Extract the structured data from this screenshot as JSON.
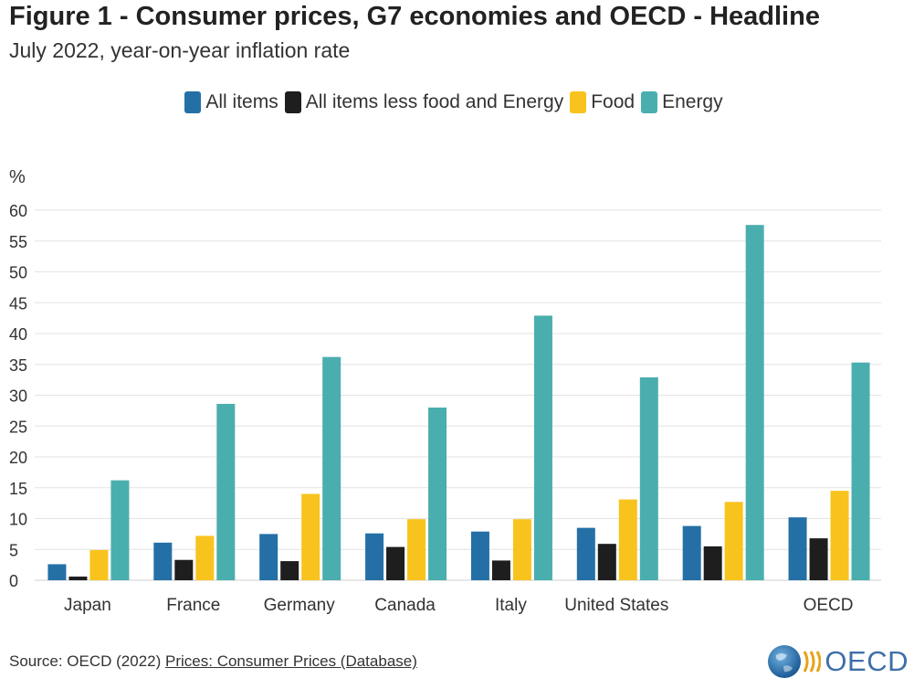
{
  "header": {
    "title": "Figure 1 - Consumer prices, G7 economies and OECD - Headline",
    "subtitle": "July 2022, year-on-year inflation rate"
  },
  "footer": {
    "source_prefix": "Source: OECD (2022) ",
    "source_link": "Prices: Consumer Prices (Database)",
    "logo_text": "OECD"
  },
  "chart_data": {
    "type": "bar",
    "title": "Figure 1 - Consumer prices, G7 economies and OECD - Headline",
    "subtitle": "July 2022, year-on-year inflation rate",
    "ylabel": "%",
    "xlabel": "",
    "ylim": [
      0,
      60
    ],
    "yticks": [
      0,
      5,
      10,
      15,
      20,
      25,
      30,
      35,
      40,
      45,
      50,
      55,
      60
    ],
    "grid": true,
    "legend_position": "top-center",
    "categories": [
      "Japan",
      "France",
      "Germany",
      "Canada",
      "Italy",
      "United States",
      "",
      "OECD"
    ],
    "series": [
      {
        "name": "All items",
        "color": "#2470a6",
        "values": [
          2.6,
          6.1,
          7.5,
          7.6,
          7.9,
          8.5,
          8.8,
          10.2
        ]
      },
      {
        "name": "All items less food and Energy",
        "color": "#1e1e1e",
        "values": [
          0.6,
          3.3,
          3.1,
          5.4,
          3.2,
          5.9,
          5.5,
          6.8
        ]
      },
      {
        "name": "Food",
        "color": "#f9c31e",
        "values": [
          4.9,
          7.2,
          14.0,
          9.9,
          9.9,
          13.1,
          12.7,
          14.5
        ]
      },
      {
        "name": "Energy",
        "color": "#4aaeae",
        "values": [
          16.2,
          28.6,
          36.2,
          28.0,
          42.9,
          32.9,
          57.6,
          35.3
        ]
      }
    ]
  }
}
